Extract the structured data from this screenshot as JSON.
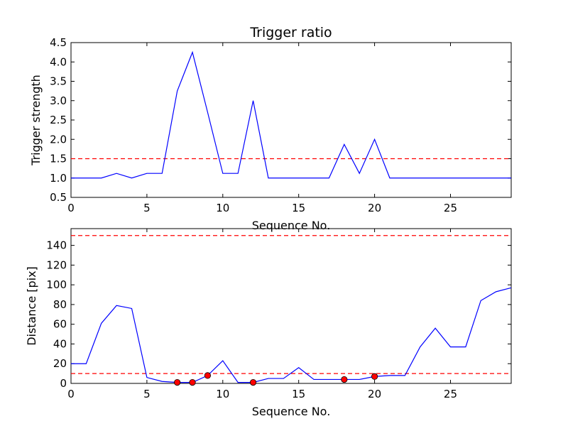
{
  "chart_data": [
    {
      "type": "line",
      "title": "Trigger ratio",
      "xlabel": "Sequence No.",
      "ylabel": "Trigger strength",
      "xlim": [
        0,
        29
      ],
      "ylim": [
        0.5,
        4.5
      ],
      "xticks": [
        "0",
        "5",
        "10",
        "15",
        "20",
        "25"
      ],
      "yticks": [
        "0.5",
        "1.0",
        "1.5",
        "2.0",
        "2.5",
        "3.0",
        "3.5",
        "4.0",
        "4.5"
      ],
      "grid": false,
      "series": [
        {
          "color": "#0000ff",
          "x": [
            0,
            1,
            2,
            3,
            4,
            5,
            6,
            7,
            8,
            9,
            10,
            11,
            12,
            13,
            14,
            15,
            16,
            17,
            18,
            19,
            20,
            21,
            22,
            23,
            24,
            25,
            26,
            27,
            28,
            29
          ],
          "y": [
            1.0,
            1.0,
            1.0,
            1.12,
            1.0,
            1.12,
            1.12,
            3.25,
            4.25,
            2.7,
            1.12,
            1.12,
            3.0,
            1.0,
            1.0,
            1.0,
            1.0,
            1.0,
            1.87,
            1.12,
            2.0,
            1.0,
            1.0,
            1.0,
            1.0,
            1.0,
            1.0,
            1.0,
            1.0,
            1.0
          ]
        }
      ],
      "hlines": [
        {
          "y": 1.5,
          "color": "#ff0000",
          "style": "dashed"
        }
      ]
    },
    {
      "type": "line",
      "title": "",
      "xlabel": "Sequence No.",
      "ylabel": "Distance [pix]",
      "xlim": [
        0,
        29
      ],
      "ylim": [
        0,
        157
      ],
      "xticks": [
        "0",
        "5",
        "10",
        "15",
        "20",
        "25"
      ],
      "yticks": [
        "0",
        "20",
        "40",
        "60",
        "80",
        "100",
        "120",
        "140"
      ],
      "grid": false,
      "series": [
        {
          "color": "#0000ff",
          "x": [
            0,
            1,
            2,
            3,
            4,
            5,
            6,
            7,
            8,
            9,
            10,
            11,
            12,
            13,
            14,
            15,
            16,
            17,
            18,
            19,
            20,
            21,
            22,
            23,
            24,
            25,
            26,
            27,
            28,
            29
          ],
          "y": [
            20,
            20,
            61,
            79,
            76,
            6,
            2,
            1,
            1,
            8,
            23,
            1,
            1,
            5,
            5,
            16,
            4,
            4,
            4,
            4,
            7,
            8,
            8,
            37,
            56,
            37,
            37,
            84,
            93,
            97
          ]
        }
      ],
      "markers": {
        "color": "#ff0000",
        "x": [
          7,
          8,
          9,
          12,
          18,
          20
        ],
        "y": [
          1,
          1,
          8,
          1,
          4,
          7
        ]
      },
      "hlines": [
        {
          "y": 150,
          "color": "#ff0000",
          "style": "dashed"
        },
        {
          "y": 10,
          "color": "#ff0000",
          "style": "dashed"
        }
      ]
    }
  ]
}
